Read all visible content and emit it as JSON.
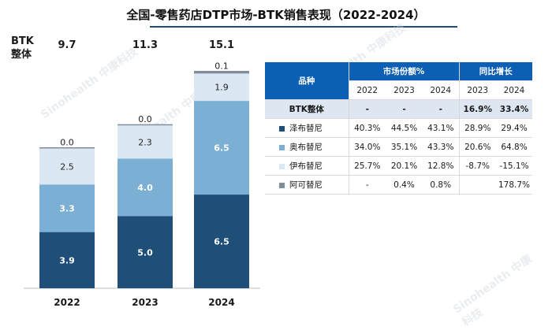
{
  "title": "全国-零售药店DTP市场-BTK销售表现（2022-2024）",
  "btk_label": "BTK整体",
  "watermark": "Sinohealth 中康科技",
  "colors": {
    "泽布替尼": "#1f4e79",
    "奥布替尼": "#7bafd4",
    "伊布替尼": "#dbe8f4",
    "阿可替尼": "#7f8c99",
    "header": "#0b5fb4"
  },
  "chart_data": {
    "type": "bar",
    "stacked": true,
    "categories": [
      "2022",
      "2023",
      "2024"
    ],
    "totals": [
      "9.7",
      "11.3",
      "15.1"
    ],
    "series": [
      {
        "name": "泽布替尼",
        "values": [
          3.9,
          5.0,
          6.5
        ],
        "labels": [
          "3.9",
          "5.0",
          "6.5"
        ]
      },
      {
        "name": "奥布替尼",
        "values": [
          3.3,
          4.0,
          6.5
        ],
        "labels": [
          "3.3",
          "4.0",
          "6.5"
        ]
      },
      {
        "name": "伊布替尼",
        "values": [
          2.5,
          2.3,
          1.9
        ],
        "labels": [
          "2.5",
          "2.3",
          "1.9"
        ]
      },
      {
        "name": "阿可替尼",
        "values": [
          0.0,
          0.0,
          0.1
        ],
        "labels": [
          "0.0",
          "0.0",
          "0.1"
        ]
      }
    ]
  },
  "table": {
    "header": {
      "variety": "品种",
      "share": "市场份额%",
      "growth": "同比增长"
    },
    "years_share": [
      "2022",
      "2023",
      "2024"
    ],
    "years_growth": [
      "2023",
      "2024"
    ],
    "btk_row": {
      "name": "BTK整体",
      "share": [
        "-",
        "-",
        "-"
      ],
      "growth": [
        "16.9%",
        "33.4%"
      ]
    },
    "rows": [
      {
        "name": "泽布替尼",
        "share": [
          "40.3%",
          "44.5%",
          "43.1%"
        ],
        "growth": [
          "28.9%",
          "29.4%"
        ]
      },
      {
        "name": "奥布替尼",
        "share": [
          "34.0%",
          "35.1%",
          "43.3%"
        ],
        "growth": [
          "20.6%",
          "64.8%"
        ]
      },
      {
        "name": "伊布替尼",
        "share": [
          "25.7%",
          "20.1%",
          "12.8%"
        ],
        "growth": [
          "-8.7%",
          "-15.1%"
        ]
      },
      {
        "name": "阿可替尼",
        "share": [
          "-",
          "0.4%",
          "0.8%"
        ],
        "growth": [
          "",
          "178.7%"
        ]
      }
    ]
  }
}
